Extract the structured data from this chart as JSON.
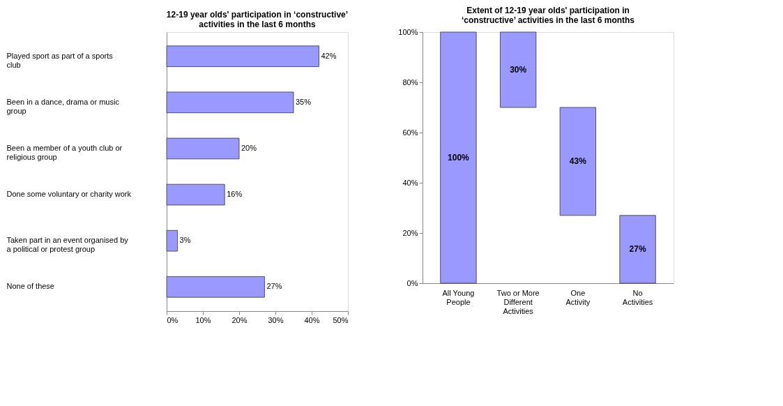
{
  "chart_data": [
    {
      "type": "bar",
      "orientation": "horizontal",
      "title": [
        "12-19 year olds' participation in ‘constructive’",
        "activities in the last 6 months"
      ],
      "categories": [
        "Played sport as part of a sports club",
        "Been in a dance, drama or music group",
        "Been a member of a youth club or religious group",
        "Done some voluntary or charity work",
        "Taken part in an event organised by a political or protest group",
        "None of these"
      ],
      "values": [
        42,
        35,
        20,
        16,
        3,
        27
      ],
      "value_labels": [
        "42%",
        "35%",
        "20%",
        "16%",
        "3%",
        "27%"
      ],
      "color": "#9999ff",
      "xlim": [
        0,
        50
      ],
      "xticks": [
        {
          "value": 0,
          "label": "0%"
        },
        {
          "value": 10,
          "label": "10%"
        },
        {
          "value": 20,
          "label": "20%"
        },
        {
          "value": 30,
          "label": "30%"
        },
        {
          "value": 40,
          "label": "40%"
        },
        {
          "value": 50,
          "label": "50%"
        }
      ],
      "grid": false
    },
    {
      "type": "bar",
      "title": [
        "Extent of 12-19 year olds' participation in",
        "‘constructive’ activities in the last 6 months"
      ],
      "categories": [
        "All Young People",
        "Two or More Different Activities",
        "One Activity",
        "No Activities"
      ],
      "values": [
        100,
        30,
        43,
        27
      ],
      "base": [
        0,
        70,
        27,
        0
      ],
      "value_labels": [
        "100%",
        "30%",
        "43%",
        "27%"
      ],
      "color": "#9999ff",
      "ylim": [
        0,
        100
      ],
      "yticks": [
        {
          "value": 0,
          "label": "0%"
        },
        {
          "value": 20,
          "label": "20%"
        },
        {
          "value": 40,
          "label": "40%"
        },
        {
          "value": 60,
          "label": "60%"
        },
        {
          "value": 80,
          "label": "80%"
        },
        {
          "value": 100,
          "label": "100%"
        }
      ],
      "grid": false
    }
  ]
}
